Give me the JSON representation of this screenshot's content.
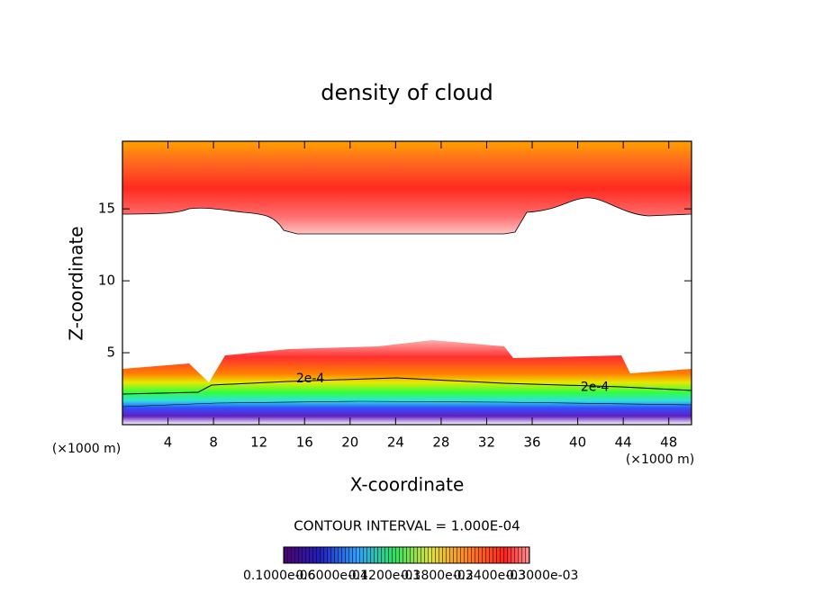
{
  "chart_data": {
    "type": "contour",
    "title": "density of cloud",
    "x_label": "X-coordinate",
    "y_label": "Z-coordinate",
    "x_unit_left": "(×1000 m)",
    "x_unit_right": "(×1000 m)",
    "xlim": [
      0,
      50
    ],
    "ylim": [
      0,
      19.7
    ],
    "xticks": [
      4,
      8,
      12,
      16,
      20,
      24,
      28,
      32,
      36,
      40,
      44,
      48
    ],
    "yticks": [
      5,
      10,
      15
    ],
    "annotations": [
      {
        "text": "2e-4",
        "x": 16.5,
        "y": 3.2
      },
      {
        "text": "2e-4",
        "x": 41.5,
        "y": 2.6
      }
    ],
    "contour_interval": "CONTOUR INTERVAL = 1.000E-04",
    "colorbar_labels": [
      "0.1000e-06",
      "0.6000e-04",
      "0.1200e-03",
      "0.1800e-03",
      "0.2400e-03",
      "0.3000e-03"
    ]
  }
}
